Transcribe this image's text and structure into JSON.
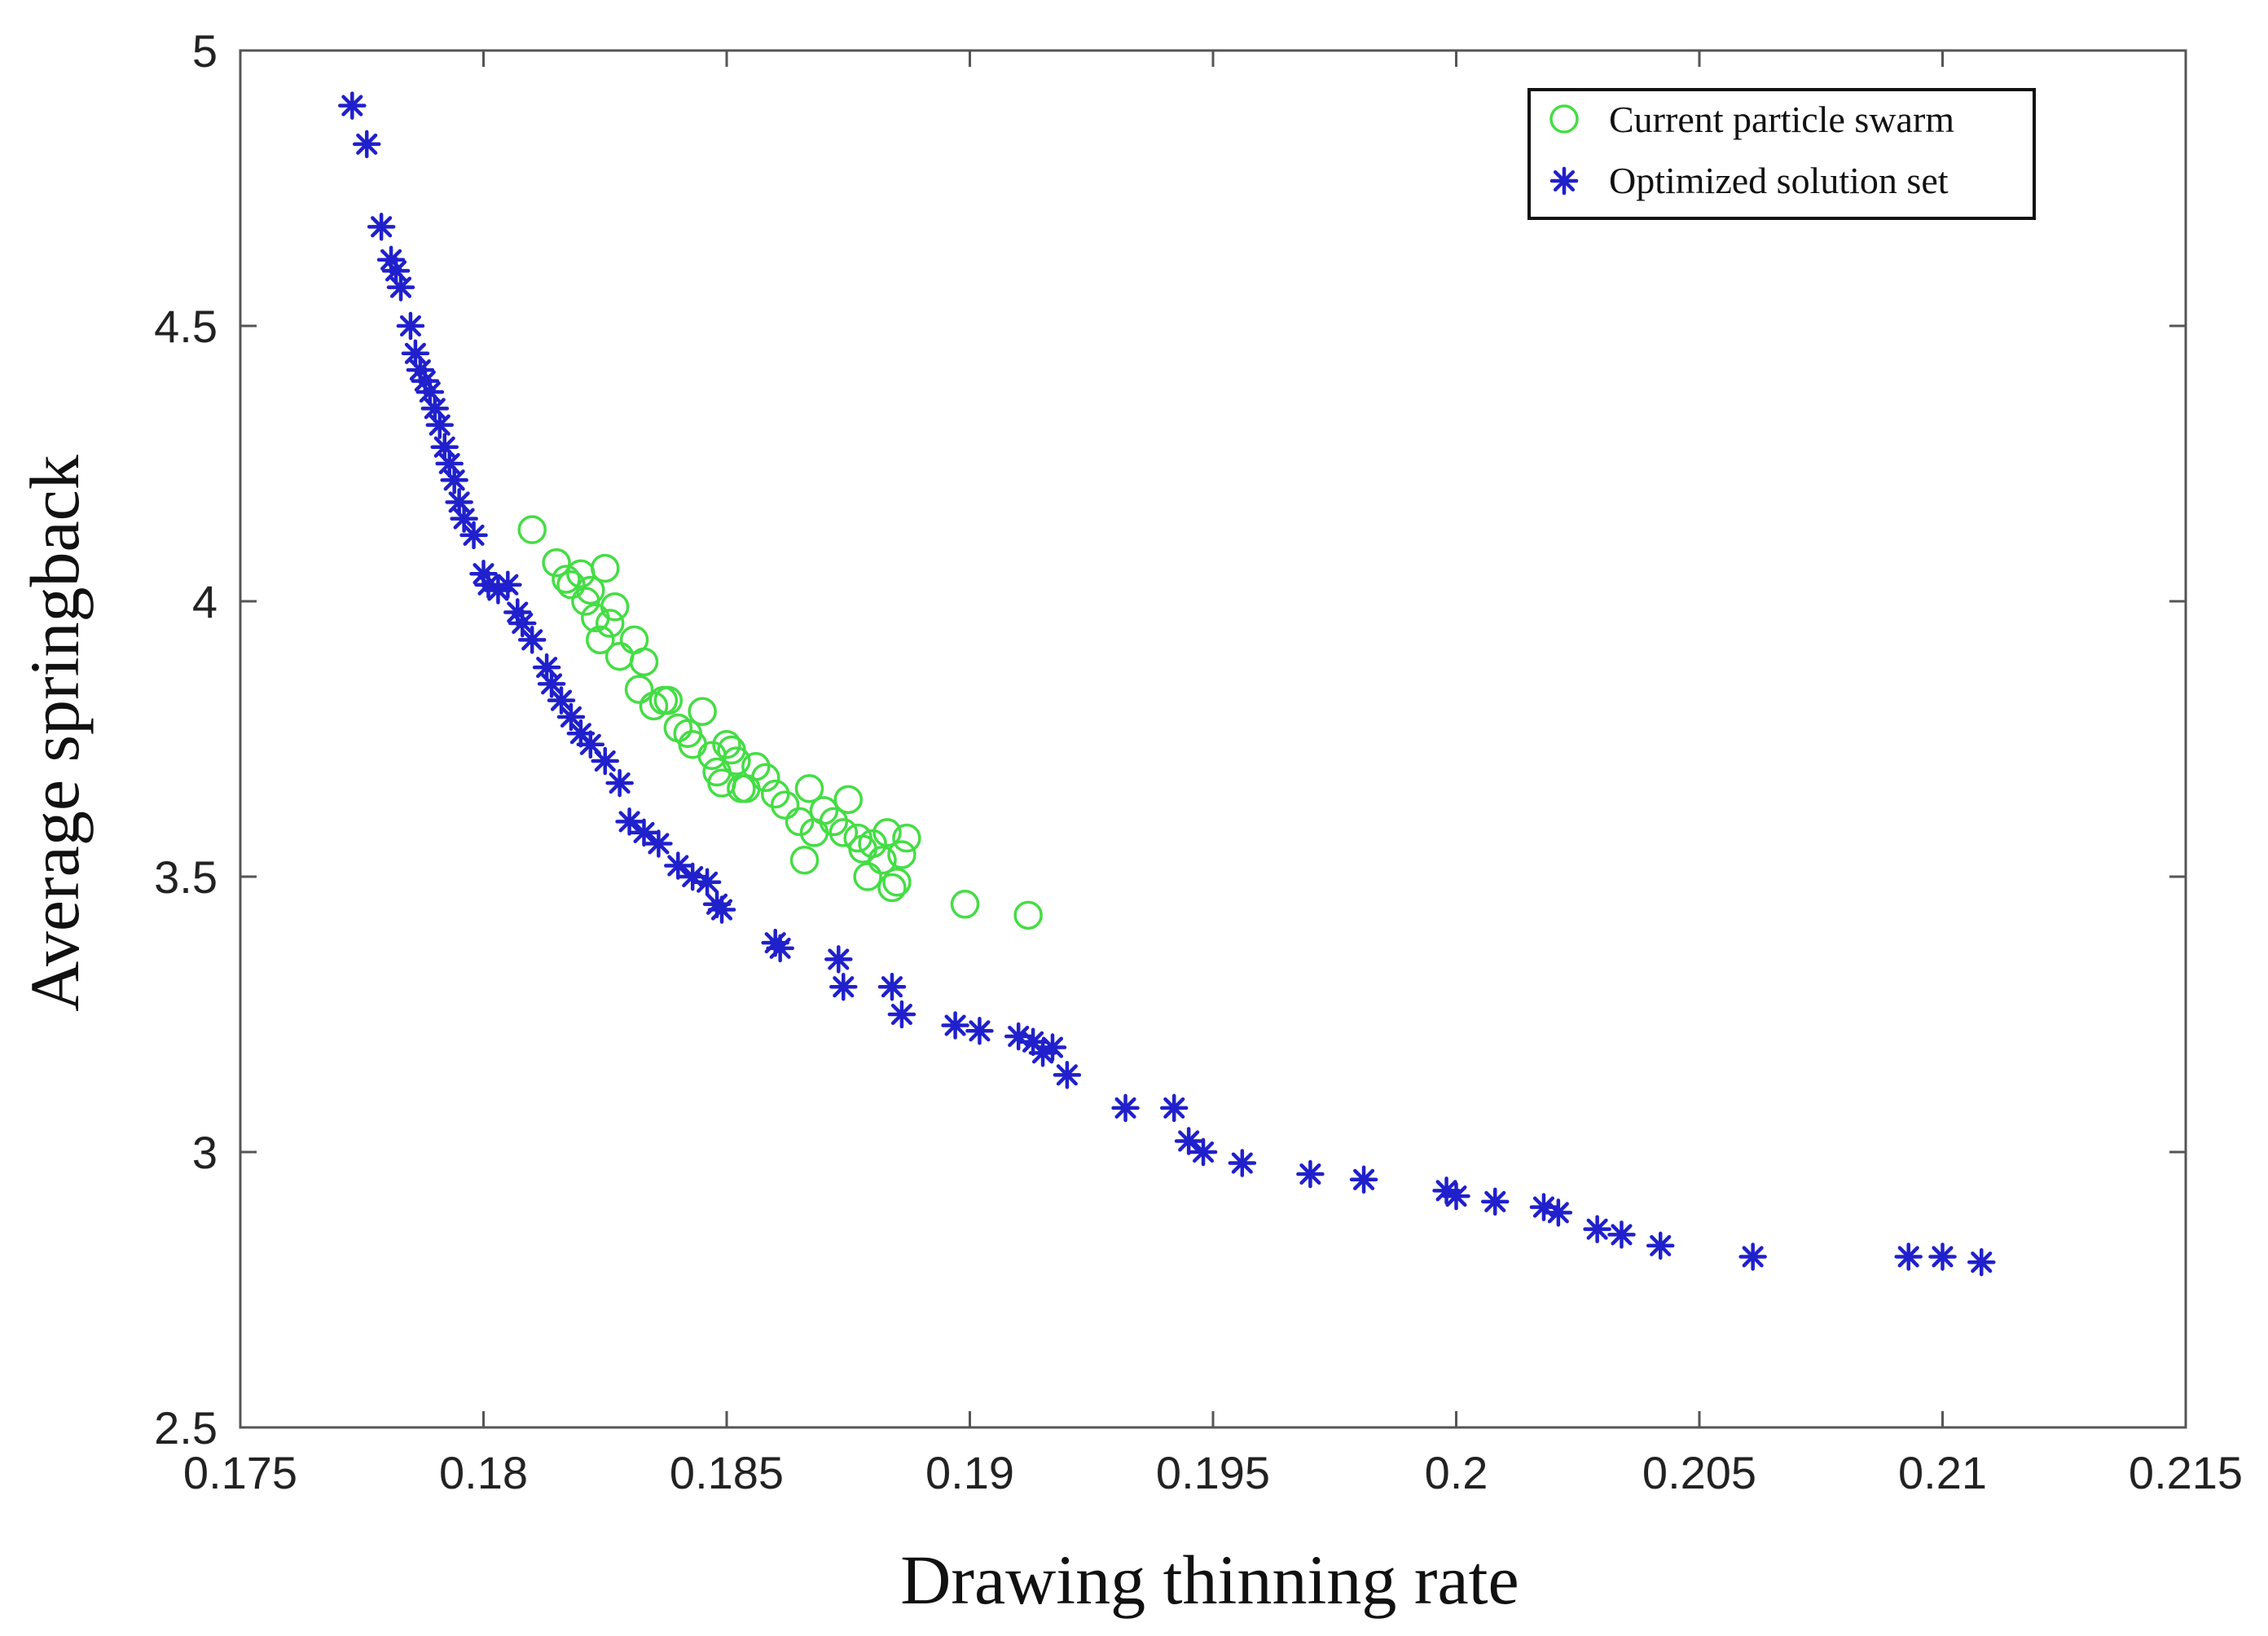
{
  "chart_data": {
    "type": "scatter",
    "title": "",
    "xlabel": "Drawing thinning rate",
    "ylabel": "Average springback",
    "xlim": [
      0.175,
      0.215
    ],
    "ylim": [
      2.5,
      5
    ],
    "xticks": [
      0.175,
      0.18,
      0.185,
      0.19,
      0.195,
      0.2,
      0.205,
      0.21,
      0.215
    ],
    "xtick_labels": [
      "0.175",
      "0.18",
      "0.185",
      "0.19",
      "0.195",
      "0.2",
      "0.205",
      "0.21",
      "0.215"
    ],
    "yticks": [
      2.5,
      3,
      3.5,
      4,
      4.5,
      5
    ],
    "ytick_labels": [
      "2.5",
      "3",
      "3.5",
      "4",
      "4.5",
      "5"
    ],
    "grid": false,
    "legend_position": "top-right",
    "series": [
      {
        "name": "Current particle swarm",
        "marker": "circle",
        "color": "#44dd44",
        "x": [
          0.181,
          0.1815,
          0.1817,
          0.182,
          0.1822,
          0.1825,
          0.1818,
          0.1821,
          0.1823,
          0.1826,
          0.1824,
          0.1828,
          0.1827,
          0.1831,
          0.1833,
          0.1832,
          0.1835,
          0.1838,
          0.184,
          0.1842,
          0.1837,
          0.1845,
          0.1843,
          0.1847,
          0.1848,
          0.185,
          0.1852,
          0.1849,
          0.1851,
          0.1854,
          0.1856,
          0.1858,
          0.1853,
          0.186,
          0.1862,
          0.1865,
          0.1867,
          0.1868,
          0.187,
          0.1872,
          0.1874,
          0.1866,
          0.1875,
          0.1877,
          0.1878,
          0.188,
          0.1882,
          0.1879,
          0.1884,
          0.1886,
          0.1885,
          0.1887,
          0.1883,
          0.1899,
          0.1912
        ],
        "y": [
          4.13,
          4.07,
          4.04,
          4.05,
          4.02,
          4.06,
          4.03,
          4.0,
          3.97,
          3.96,
          3.93,
          3.9,
          3.99,
          3.93,
          3.89,
          3.84,
          3.81,
          3.82,
          3.77,
          3.76,
          3.82,
          3.8,
          3.74,
          3.72,
          3.69,
          3.74,
          3.71,
          3.67,
          3.73,
          3.66,
          3.7,
          3.68,
          3.66,
          3.65,
          3.63,
          3.6,
          3.66,
          3.58,
          3.62,
          3.6,
          3.58,
          3.53,
          3.64,
          3.57,
          3.55,
          3.56,
          3.53,
          3.5,
          3.48,
          3.54,
          3.49,
          3.57,
          3.58,
          3.45,
          3.43
        ]
      },
      {
        "name": "Optimized solution set",
        "marker": "asterisk",
        "color": "#2020cc",
        "x": [
          0.1773,
          0.1776,
          0.1779,
          0.1781,
          0.1782,
          0.1783,
          0.1785,
          0.1786,
          0.1787,
          0.1788,
          0.1789,
          0.179,
          0.1791,
          0.1792,
          0.1793,
          0.1794,
          0.1795,
          0.1796,
          0.1798,
          0.18,
          0.1801,
          0.1803,
          0.1805,
          0.1807,
          0.1808,
          0.181,
          0.1813,
          0.1814,
          0.1816,
          0.1818,
          0.182,
          0.1822,
          0.1825,
          0.1828,
          0.183,
          0.1833,
          0.1836,
          0.184,
          0.1843,
          0.1846,
          0.1848,
          0.1849,
          0.186,
          0.1861,
          0.1873,
          0.1874,
          0.1884,
          0.1886,
          0.1897,
          0.1902,
          0.191,
          0.1913,
          0.1915,
          0.1917,
          0.192,
          0.1932,
          0.1942,
          0.1945,
          0.1948,
          0.1956,
          0.197,
          0.1981,
          0.1998,
          0.2,
          0.2008,
          0.2018,
          0.2021,
          0.2029,
          0.2034,
          0.2042,
          0.2061,
          0.2093,
          0.21,
          0.2108
        ],
        "y": [
          4.9,
          4.83,
          4.68,
          4.62,
          4.6,
          4.57,
          4.5,
          4.45,
          4.42,
          4.4,
          4.38,
          4.35,
          4.32,
          4.28,
          4.25,
          4.22,
          4.18,
          4.15,
          4.12,
          4.05,
          4.03,
          4.02,
          4.03,
          3.98,
          3.96,
          3.93,
          3.88,
          3.85,
          3.82,
          3.79,
          3.76,
          3.74,
          3.71,
          3.67,
          3.6,
          3.58,
          3.56,
          3.52,
          3.5,
          3.49,
          3.45,
          3.44,
          3.38,
          3.37,
          3.35,
          3.3,
          3.3,
          3.25,
          3.23,
          3.22,
          3.21,
          3.2,
          3.18,
          3.19,
          3.14,
          3.08,
          3.08,
          3.02,
          3.0,
          2.98,
          2.96,
          2.95,
          2.93,
          2.92,
          2.91,
          2.9,
          2.89,
          2.86,
          2.85,
          2.83,
          2.81,
          2.81,
          2.81,
          2.8
        ]
      }
    ]
  }
}
